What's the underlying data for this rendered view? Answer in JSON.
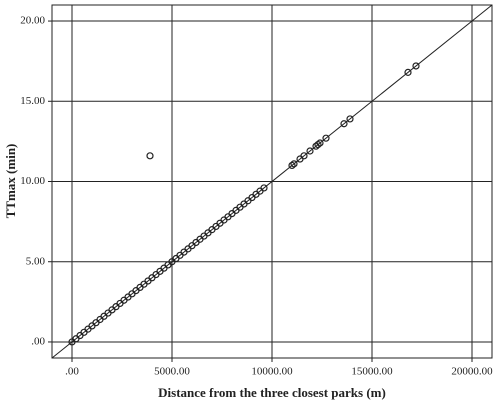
{
  "chart_data": {
    "type": "scatter",
    "x_label": "Distance from the three closest parks (m)",
    "y_label": "TTmax (min)",
    "xlim": [
      -1000,
      21000
    ],
    "ylim": [
      -1,
      21
    ],
    "xticks": [
      {
        "value": 0,
        "label": ".00"
      },
      {
        "value": 5000,
        "label": "5000.00"
      },
      {
        "value": 10000,
        "label": "10000.00"
      },
      {
        "value": 15000,
        "label": "15000.00"
      },
      {
        "value": 20000,
        "label": "20000.00"
      }
    ],
    "yticks": [
      {
        "value": 0,
        "label": ".00"
      },
      {
        "value": 5,
        "label": "5.00"
      },
      {
        "value": 10,
        "label": "10.00"
      },
      {
        "value": 15,
        "label": "15.00"
      },
      {
        "value": 20,
        "label": "20.00"
      }
    ],
    "grid": true,
    "color": "#222222",
    "x": [
      0,
      200,
      400,
      600,
      800,
      1000,
      1200,
      1400,
      1600,
      1800,
      2000,
      2200,
      2400,
      2600,
      2800,
      3000,
      3200,
      3400,
      3600,
      3800,
      4000,
      4200,
      4400,
      4600,
      4800,
      5000,
      5200,
      5400,
      5600,
      5800,
      6000,
      6200,
      6400,
      6600,
      6800,
      7000,
      7200,
      7400,
      7600,
      7800,
      8000,
      8200,
      8400,
      8600,
      8800,
      9000,
      9200,
      9400,
      9600,
      11000,
      11100,
      11400,
      11600,
      11900,
      12200,
      12300,
      12400,
      12700,
      13600,
      13900,
      16800,
      17200,
      3900
    ],
    "y": [
      0,
      0.2,
      0.4,
      0.6,
      0.8,
      1,
      1.2,
      1.4,
      1.6,
      1.8,
      2,
      2.2,
      2.4,
      2.6,
      2.8,
      3,
      3.2,
      3.4,
      3.6,
      3.8,
      4,
      4.2,
      4.4,
      4.6,
      4.8,
      5,
      5.2,
      5.4,
      5.6,
      5.8,
      6,
      6.2,
      6.4,
      6.6,
      6.8,
      7,
      7.2,
      7.4,
      7.6,
      7.8,
      8,
      8.2,
      8.4,
      8.6,
      8.8,
      9,
      9.2,
      9.4,
      9.6,
      11,
      11.1,
      11.4,
      11.6,
      11.9,
      12.2,
      12.3,
      12.4,
      12.7,
      13.6,
      13.9,
      16.8,
      17.2,
      11.6
    ],
    "reference_line": {
      "x": [
        -1000,
        21000
      ],
      "y": [
        -1,
        21
      ]
    }
  }
}
